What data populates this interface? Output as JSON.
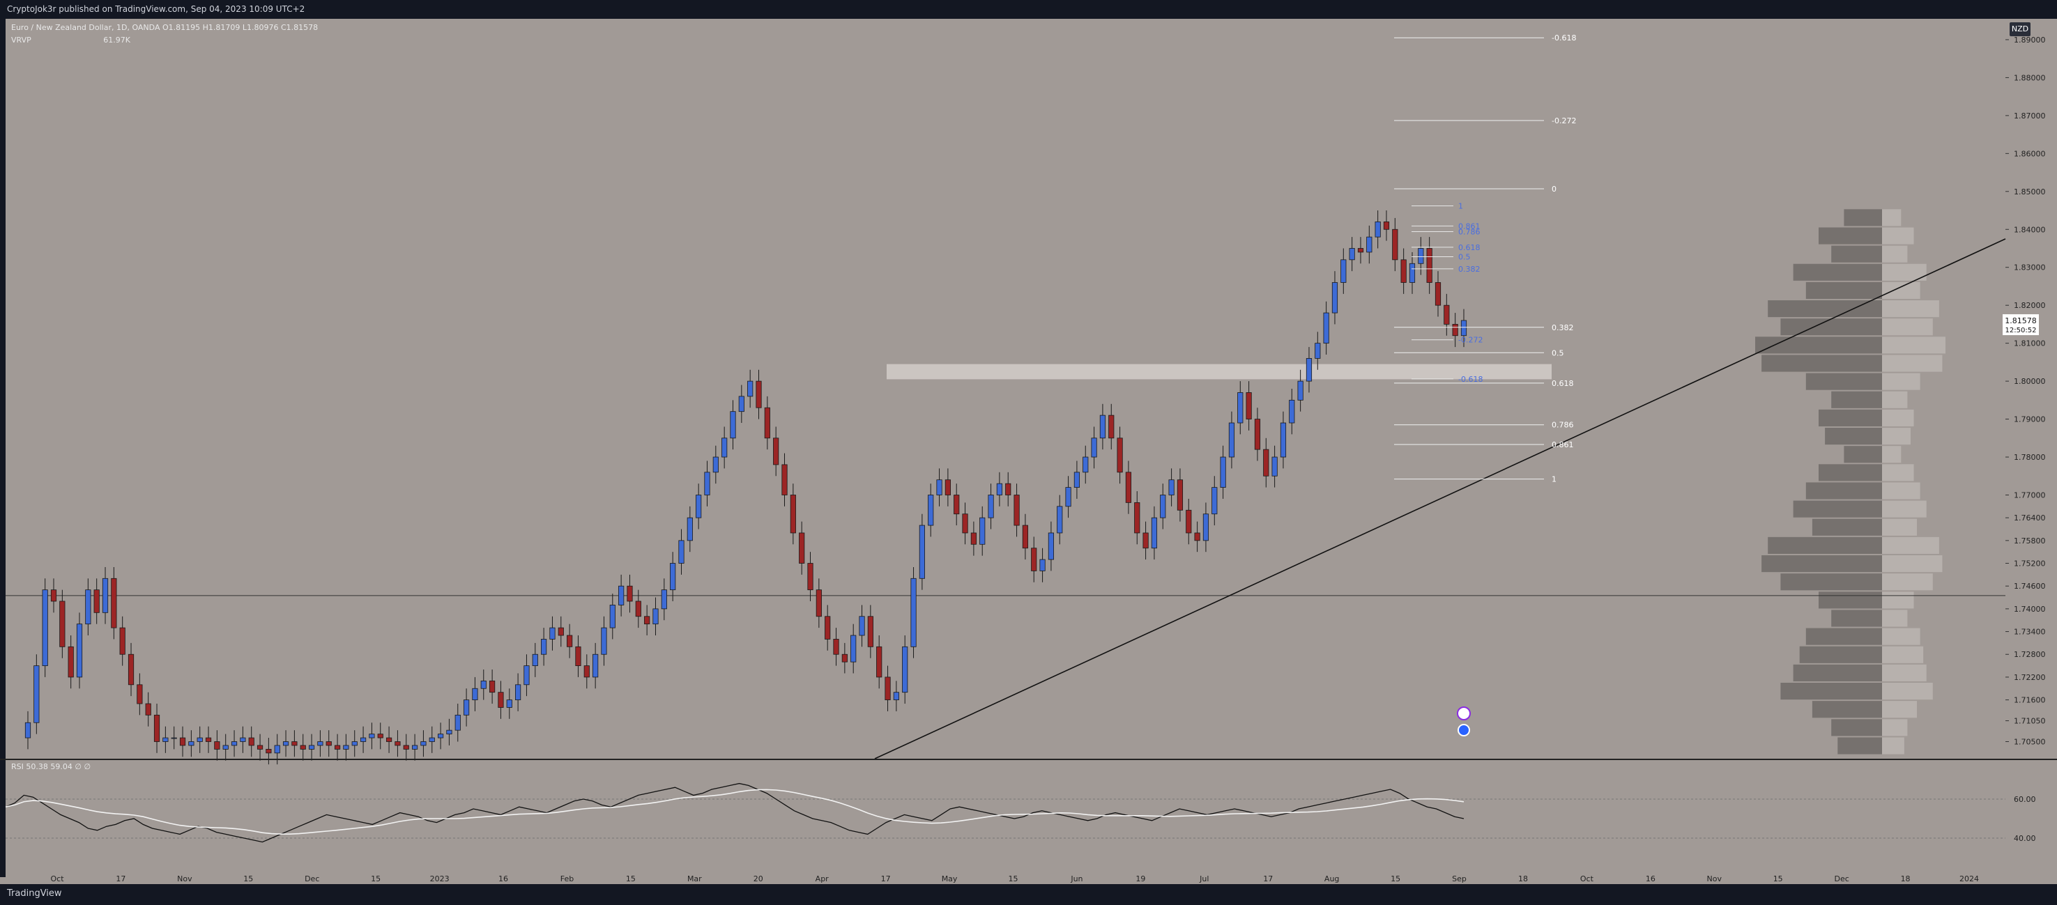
{
  "header": {
    "text": "CryptoJok3r published on TradingView.com, Sep 04, 2023 10:09 UTC+2"
  },
  "footer": {
    "logo": "TradingView"
  },
  "legend": {
    "symbol": "Euro / New Zealand Dollar, 1D, OANDA",
    "ohlc": "O1.81195 H1.81709 L1.80976 C1.81578",
    "vrvp": "VRVP",
    "vrvp_value": "61.97K"
  },
  "rsi_legend": {
    "label": "RSI",
    "v1": "50.38",
    "v2": "59.04",
    "v3": "∅ ∅"
  },
  "currency": "NZD",
  "price_tag": {
    "price": "1.81578",
    "countdown": "12:50:52"
  },
  "colors": {
    "bg": "#a19a96",
    "up": "#3d6bd6",
    "down": "#9c2525",
    "wick": "#1a1a1a",
    "fib_white": "#ffffff",
    "fib_blue": "#4a6ee0",
    "rsi_line": "#111111",
    "rsi_ma": "#f2f2f2"
  },
  "chart_data": {
    "type": "candlestick",
    "symbol": "EURNZD",
    "timeframe": "1D",
    "y_axis_ticks": [
      "1.89000",
      "1.88000",
      "1.87000",
      "1.86000",
      "1.85000",
      "1.84000",
      "1.83000",
      "1.82000",
      "1.81000",
      "1.80000",
      "1.79000",
      "1.78000",
      "1.77000",
      "1.76400",
      "1.75800",
      "1.75200",
      "1.74600",
      "1.74000",
      "1.73400",
      "1.72800",
      "1.72200",
      "1.71600",
      "1.71050",
      "1.70500"
    ],
    "x_axis_ticks": [
      "Oct",
      "17",
      "Nov",
      "15",
      "Dec",
      "15",
      "2023",
      "16",
      "Feb",
      "15",
      "Mar",
      "20",
      "Apr",
      "17",
      "May",
      "15",
      "Jun",
      "19",
      "Jul",
      "17",
      "Aug",
      "15",
      "Sep",
      "18",
      "Oct",
      "16",
      "Nov",
      "15",
      "Dec",
      "18",
      "2024"
    ],
    "ohlc_closes": [
      1.71,
      1.725,
      1.745,
      1.742,
      1.73,
      1.722,
      1.736,
      1.745,
      1.739,
      1.748,
      1.735,
      1.728,
      1.72,
      1.715,
      1.712,
      1.705,
      1.706,
      1.706,
      1.704,
      1.705,
      1.706,
      1.705,
      1.703,
      1.704,
      1.705,
      1.706,
      1.704,
      1.703,
      1.702,
      1.704,
      1.705,
      1.704,
      1.703,
      1.704,
      1.705,
      1.704,
      1.703,
      1.704,
      1.705,
      1.706,
      1.707,
      1.706,
      1.705,
      1.704,
      1.703,
      1.704,
      1.705,
      1.706,
      1.707,
      1.708,
      1.712,
      1.716,
      1.719,
      1.721,
      1.718,
      1.714,
      1.716,
      1.72,
      1.725,
      1.728,
      1.732,
      1.735,
      1.733,
      1.73,
      1.725,
      1.722,
      1.728,
      1.735,
      1.741,
      1.746,
      1.742,
      1.738,
      1.736,
      1.74,
      1.745,
      1.752,
      1.758,
      1.764,
      1.77,
      1.776,
      1.78,
      1.785,
      1.792,
      1.796,
      1.8,
      1.793,
      1.785,
      1.778,
      1.77,
      1.76,
      1.752,
      1.745,
      1.738,
      1.732,
      1.728,
      1.726,
      1.733,
      1.738,
      1.73,
      1.722,
      1.716,
      1.718,
      1.73,
      1.748,
      1.762,
      1.77,
      1.774,
      1.77,
      1.765,
      1.76,
      1.757,
      1.764,
      1.77,
      1.773,
      1.77,
      1.762,
      1.756,
      1.75,
      1.753,
      1.76,
      1.767,
      1.772,
      1.776,
      1.78,
      1.785,
      1.791,
      1.785,
      1.776,
      1.768,
      1.76,
      1.756,
      1.764,
      1.77,
      1.774,
      1.766,
      1.76,
      1.758,
      1.765,
      1.772,
      1.78,
      1.789,
      1.797,
      1.79,
      1.782,
      1.775,
      1.78,
      1.789,
      1.795,
      1.8,
      1.806,
      1.81,
      1.818,
      1.826,
      1.832,
      1.835,
      1.834,
      1.838,
      1.842,
      1.84,
      1.832,
      1.826,
      1.831,
      1.835,
      1.826,
      1.82,
      1.815,
      1.812,
      1.816
    ],
    "fibonacci_white": [
      {
        "level": "-0.618",
        "price": 1.8905
      },
      {
        "level": "-0.272",
        "price": 1.8687
      },
      {
        "level": "0",
        "price": 1.8507
      },
      {
        "level": "0.382",
        "price": 1.8142
      },
      {
        "level": "0.5",
        "price": 1.8075
      },
      {
        "level": "0.618",
        "price": 1.7995
      },
      {
        "level": "0.786",
        "price": 1.7885
      },
      {
        "level": "0.861",
        "price": 1.7833
      },
      {
        "level": "1",
        "price": 1.7742
      }
    ],
    "fibonacci_blue": [
      {
        "level": "1",
        "price": 1.8462
      },
      {
        "level": "0.861",
        "price": 1.8409
      },
      {
        "level": "0.786",
        "price": 1.8394
      },
      {
        "level": "0.618",
        "price": 1.8353
      },
      {
        "level": "0.5",
        "price": 1.8328
      },
      {
        "level": "0.382",
        "price": 1.8296
      },
      {
        "level": "-0.272",
        "price": 1.8109
      },
      {
        "level": "-0.618",
        "price": 1.8006
      }
    ],
    "rsi_ticks": [
      "60.00",
      "40.00"
    ],
    "rsi_values": [
      56,
      58,
      62,
      61,
      58,
      55,
      52,
      50,
      48,
      45,
      44,
      46,
      47,
      49,
      50,
      47,
      45,
      44,
      43,
      42,
      44,
      46,
      45,
      43,
      42,
      41,
      40,
      39,
      38,
      40,
      42,
      44,
      46,
      48,
      50,
      52,
      51,
      50,
      49,
      48,
      47,
      49,
      51,
      53,
      52,
      51,
      49,
      48,
      50,
      52,
      53,
      55,
      54,
      53,
      52,
      54,
      56,
      55,
      54,
      53,
      55,
      57,
      59,
      60,
      59,
      57,
      56,
      58,
      60,
      62,
      63,
      64,
      65,
      66,
      64,
      62,
      63,
      65,
      66,
      67,
      68,
      67,
      65,
      63,
      60,
      57,
      54,
      52,
      50,
      49,
      48,
      46,
      44,
      43,
      42,
      45,
      48,
      50,
      52,
      51,
      50,
      49,
      52,
      55,
      56,
      55,
      54,
      53,
      52,
      51,
      50,
      51,
      53,
      54,
      53,
      52,
      51,
      50,
      49,
      50,
      52,
      53,
      52,
      51,
      50,
      49,
      51,
      53,
      55,
      54,
      53,
      52,
      53,
      54,
      55,
      54,
      53,
      52,
      51,
      52,
      53,
      55,
      56,
      57,
      58,
      59,
      60,
      61,
      62,
      63,
      64,
      65,
      63,
      60,
      58,
      56,
      55,
      53,
      51,
      50
    ]
  }
}
